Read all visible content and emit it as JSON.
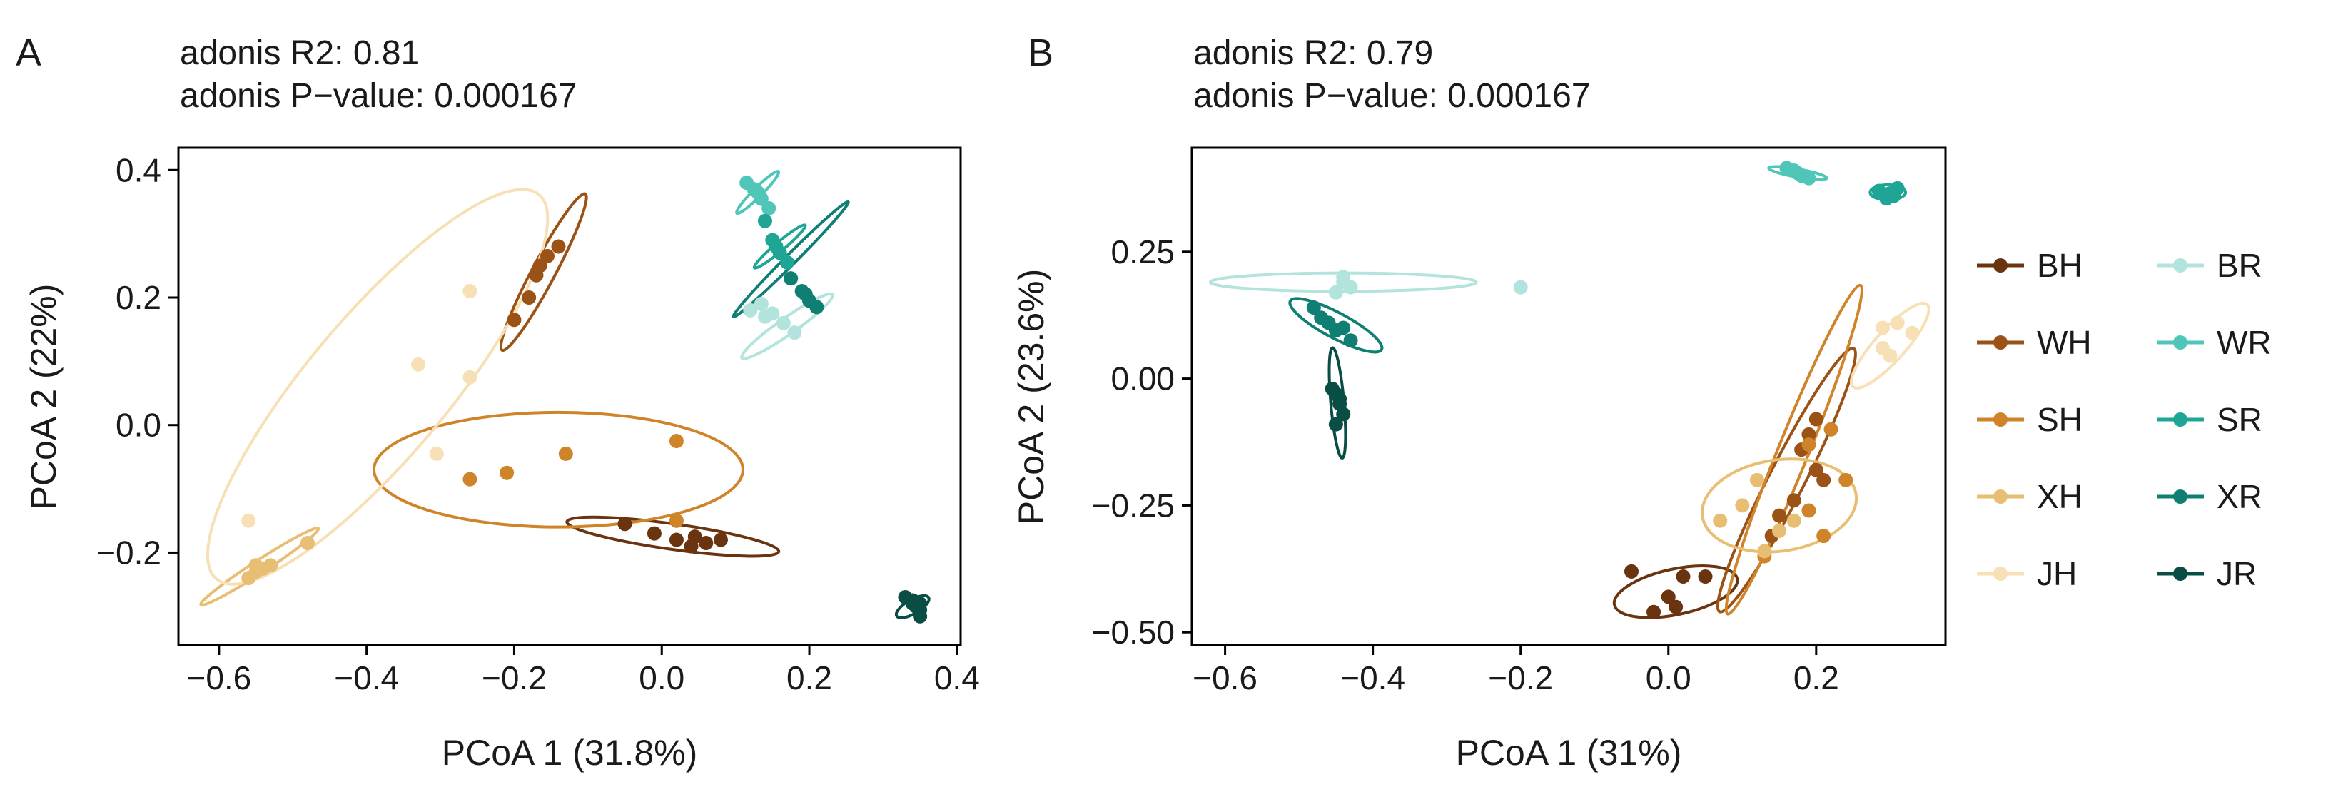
{
  "colors": {
    "BH": "#6b3410",
    "WH": "#9a5216",
    "SH": "#d0842a",
    "XH": "#e8be72",
    "JH": "#f8e0b6",
    "BR": "#b2e3dc",
    "WR": "#4fc6b8",
    "SR": "#1fa595",
    "XR": "#0f7f73",
    "JR": "#0a4d44"
  },
  "legend": [
    {
      "key": "BH",
      "label": "BH"
    },
    {
      "key": "WH",
      "label": "WH"
    },
    {
      "key": "SH",
      "label": "SH"
    },
    {
      "key": "XH",
      "label": "XH"
    },
    {
      "key": "JH",
      "label": "JH"
    },
    {
      "key": "BR",
      "label": "BR"
    },
    {
      "key": "WR",
      "label": "WR"
    },
    {
      "key": "SR",
      "label": "SR"
    },
    {
      "key": "XR",
      "label": "XR"
    },
    {
      "key": "JR",
      "label": "JR"
    }
  ],
  "chart_data": [
    {
      "panel": "A",
      "type": "scatter",
      "stats": {
        "r2": "adonis R2: 0.81",
        "p": "adonis P−value: 0.000167"
      },
      "xlabel": "PCoA 1 (31.8%)",
      "ylabel": "PCoA 2 (22%)",
      "xlim": [
        -0.655,
        0.405
      ],
      "ylim": [
        -0.345,
        0.435
      ],
      "xticks": [
        -0.6,
        -0.4,
        -0.2,
        0.0,
        0.2,
        0.4
      ],
      "xtick_labels": [
        "−0.6",
        "−0.4",
        "−0.2",
        "0.0",
        "0.2",
        "0.4"
      ],
      "yticks": [
        -0.2,
        0.0,
        0.2,
        0.4
      ],
      "ytick_labels": [
        "−0.2",
        "0.0",
        "0.2",
        "0.4"
      ],
      "groups": [
        {
          "key": "BH",
          "points": [
            [
              -0.05,
              -0.155
            ],
            [
              -0.01,
              -0.17
            ],
            [
              0.02,
              -0.18
            ],
            [
              0.04,
              -0.19
            ],
            [
              0.06,
              -0.185
            ],
            [
              0.08,
              -0.18
            ],
            [
              0.045,
              -0.175
            ]
          ],
          "ellipse": {
            "cx": 0.015,
            "cy": -0.175,
            "rx": 0.145,
            "ry": 0.02,
            "angle": -8
          }
        },
        {
          "key": "WH",
          "points": [
            [
              -0.2,
              0.165
            ],
            [
              -0.18,
              0.2
            ],
            [
              -0.17,
              0.235
            ],
            [
              -0.155,
              0.265
            ],
            [
              -0.14,
              0.28
            ],
            [
              -0.165,
              0.25
            ]
          ],
          "ellipse": {
            "cx": -0.16,
            "cy": 0.24,
            "rx": 0.12,
            "ry": 0.018,
            "angle": 62
          }
        },
        {
          "key": "SH",
          "points": [
            [
              -0.26,
              -0.085
            ],
            [
              -0.21,
              -0.075
            ],
            [
              -0.13,
              -0.045
            ],
            [
              0.02,
              -0.025
            ],
            [
              0.02,
              -0.15
            ]
          ],
          "ellipse": {
            "cx": -0.14,
            "cy": -0.07,
            "rx": 0.25,
            "ry": 0.09,
            "angle": 0
          }
        },
        {
          "key": "XH",
          "points": [
            [
              -0.56,
              -0.24
            ],
            [
              -0.55,
              -0.23
            ],
            [
              -0.54,
              -0.225
            ],
            [
              -0.53,
              -0.22
            ],
            [
              -0.48,
              -0.185
            ],
            [
              -0.55,
              -0.22
            ]
          ],
          "ellipse": {
            "cx": -0.545,
            "cy": -0.222,
            "rx": 0.095,
            "ry": 0.01,
            "angle": 33
          }
        },
        {
          "key": "JH",
          "points": [
            [
              -0.56,
              -0.15
            ],
            [
              -0.33,
              0.095
            ],
            [
              -0.26,
              0.21
            ],
            [
              -0.26,
              0.075
            ],
            [
              -0.305,
              -0.045
            ]
          ],
          "ellipse": {
            "cx": -0.385,
            "cy": 0.06,
            "rx": 0.34,
            "ry": 0.11,
            "angle": 50
          }
        },
        {
          "key": "BR",
          "points": [
            [
              0.12,
              0.18
            ],
            [
              0.135,
              0.19
            ],
            [
              0.15,
              0.175
            ],
            [
              0.165,
              0.16
            ],
            [
              0.18,
              0.145
            ],
            [
              0.14,
              0.17
            ]
          ],
          "ellipse": {
            "cx": 0.17,
            "cy": 0.155,
            "rx": 0.075,
            "ry": 0.013,
            "angle": 35
          }
        },
        {
          "key": "WR",
          "points": [
            [
              0.115,
              0.38
            ],
            [
              0.125,
              0.37
            ],
            [
              0.135,
              0.355
            ],
            [
              0.145,
              0.34
            ],
            [
              0.13,
              0.365
            ]
          ],
          "ellipse": {
            "cx": 0.13,
            "cy": 0.365,
            "rx": 0.04,
            "ry": 0.007,
            "angle": 45
          }
        },
        {
          "key": "SR",
          "points": [
            [
              0.14,
              0.32
            ],
            [
              0.15,
              0.29
            ],
            [
              0.16,
              0.27
            ],
            [
              0.17,
              0.255
            ],
            [
              0.155,
              0.28
            ]
          ],
          "ellipse": {
            "cx": 0.16,
            "cy": 0.28,
            "rx": 0.045,
            "ry": 0.007,
            "angle": 40
          }
        },
        {
          "key": "XR",
          "points": [
            [
              0.175,
              0.23
            ],
            [
              0.19,
              0.21
            ],
            [
              0.2,
              0.195
            ],
            [
              0.21,
              0.185
            ],
            [
              0.195,
              0.205
            ]
          ],
          "ellipse": {
            "cx": 0.175,
            "cy": 0.26,
            "rx": 0.11,
            "ry": 0.008,
            "angle": 45
          }
        },
        {
          "key": "JR",
          "points": [
            [
              0.33,
              -0.27
            ],
            [
              0.34,
              -0.28
            ],
            [
              0.345,
              -0.285
            ],
            [
              0.35,
              -0.29
            ],
            [
              0.35,
              -0.3
            ],
            [
              0.34,
              -0.275
            ],
            [
              0.35,
              -0.28
            ]
          ],
          "ellipse": {
            "cx": 0.34,
            "cy": -0.285,
            "rx": 0.025,
            "ry": 0.011,
            "angle": 30
          }
        }
      ]
    },
    {
      "panel": "B",
      "type": "scatter",
      "stats": {
        "r2": "adonis R2: 0.79",
        "p": "adonis P−value: 0.000167"
      },
      "xlabel": "PCoA 1 (31%)",
      "ylabel": "PCoA 2 (23.6%)",
      "xlim": [
        -0.645,
        0.375
      ],
      "ylim": [
        -0.525,
        0.455
      ],
      "xticks": [
        -0.6,
        -0.4,
        -0.2,
        0.0,
        0.2
      ],
      "xtick_labels": [
        "−0.6",
        "−0.4",
        "−0.2",
        "0.0",
        "0.2"
      ],
      "yticks": [
        -0.5,
        -0.25,
        0.0,
        0.25
      ],
      "ytick_labels": [
        "−0.50",
        "−0.25",
        "0.00",
        "0.25"
      ],
      "groups": [
        {
          "key": "BH",
          "points": [
            [
              -0.05,
              -0.38
            ],
            [
              -0.02,
              -0.46
            ],
            [
              0.01,
              -0.45
            ],
            [
              0.02,
              -0.39
            ],
            [
              0.05,
              -0.39
            ],
            [
              0.0,
              -0.43
            ]
          ],
          "ellipse": {
            "cx": 0.01,
            "cy": -0.42,
            "rx": 0.085,
            "ry": 0.045,
            "angle": 12
          }
        },
        {
          "key": "WH",
          "points": [
            [
              0.2,
              -0.08
            ],
            [
              0.19,
              -0.11
            ],
            [
              0.18,
              -0.14
            ],
            [
              0.2,
              -0.18
            ],
            [
              0.17,
              -0.24
            ],
            [
              0.21,
              -0.2
            ],
            [
              0.15,
              -0.27
            ],
            [
              0.14,
              -0.31
            ]
          ],
          "ellipse": {
            "cx": 0.16,
            "cy": -0.2,
            "rx": 0.2,
            "ry": 0.035,
            "angle": 63
          }
        },
        {
          "key": "SH",
          "points": [
            [
              0.22,
              -0.1
            ],
            [
              0.19,
              -0.13
            ],
            [
              0.24,
              -0.2
            ],
            [
              0.19,
              -0.26
            ],
            [
              0.21,
              -0.31
            ],
            [
              0.13,
              -0.35
            ]
          ],
          "ellipse": {
            "cx": 0.17,
            "cy": -0.14,
            "rx": 0.24,
            "ry": 0.03,
            "angle": 68
          }
        },
        {
          "key": "XH",
          "points": [
            [
              0.07,
              -0.28
            ],
            [
              0.1,
              -0.25
            ],
            [
              0.12,
              -0.2
            ],
            [
              0.15,
              -0.3
            ],
            [
              0.17,
              -0.28
            ],
            [
              0.13,
              -0.34
            ]
          ],
          "ellipse": {
            "cx": 0.15,
            "cy": -0.25,
            "rx": 0.105,
            "ry": 0.09,
            "angle": 8
          }
        },
        {
          "key": "JH",
          "points": [
            [
              0.29,
              0.06
            ],
            [
              0.3,
              0.045
            ],
            [
              0.31,
              0.11
            ],
            [
              0.33,
              0.09
            ],
            [
              0.29,
              0.1
            ]
          ],
          "ellipse": {
            "cx": 0.3,
            "cy": 0.065,
            "rx": 0.075,
            "ry": 0.03,
            "angle": 48
          }
        },
        {
          "key": "BR",
          "points": [
            [
              -0.45,
              0.17
            ],
            [
              -0.44,
              0.19
            ],
            [
              -0.43,
              0.18
            ],
            [
              -0.2,
              0.18
            ],
            [
              -0.44,
              0.2
            ]
          ],
          "ellipse": {
            "cx": -0.44,
            "cy": 0.19,
            "rx": 0.18,
            "ry": 0.018,
            "angle": 0
          }
        },
        {
          "key": "WR",
          "points": [
            [
              0.16,
              0.415
            ],
            [
              0.17,
              0.41
            ],
            [
              0.18,
              0.4
            ],
            [
              0.19,
              0.395
            ],
            [
              0.175,
              0.405
            ]
          ],
          "ellipse": {
            "cx": 0.175,
            "cy": 0.405,
            "rx": 0.04,
            "ry": 0.008,
            "angle": -10
          }
        },
        {
          "key": "SR",
          "points": [
            [
              0.285,
              0.37
            ],
            [
              0.3,
              0.365
            ],
            [
              0.31,
              0.375
            ],
            [
              0.295,
              0.355
            ],
            [
              0.305,
              0.36
            ]
          ],
          "ellipse": {
            "cx": 0.297,
            "cy": 0.367,
            "rx": 0.024,
            "ry": 0.015,
            "angle": 0
          }
        },
        {
          "key": "XR",
          "points": [
            [
              -0.48,
              0.14
            ],
            [
              -0.47,
              0.12
            ],
            [
              -0.46,
              0.11
            ],
            [
              -0.44,
              0.1
            ],
            [
              -0.43,
              0.075
            ],
            [
              -0.45,
              0.095
            ]
          ],
          "ellipse": {
            "cx": -0.45,
            "cy": 0.105,
            "rx": 0.07,
            "ry": 0.025,
            "angle": -28
          }
        },
        {
          "key": "JR",
          "points": [
            [
              -0.455,
              -0.02
            ],
            [
              -0.45,
              -0.03
            ],
            [
              -0.445,
              -0.05
            ],
            [
              -0.44,
              -0.07
            ],
            [
              -0.45,
              -0.09
            ],
            [
              -0.445,
              -0.04
            ]
          ],
          "ellipse": {
            "cx": -0.448,
            "cy": -0.048,
            "rx": 0.075,
            "ry": 0.013,
            "angle": -85
          }
        }
      ]
    }
  ]
}
